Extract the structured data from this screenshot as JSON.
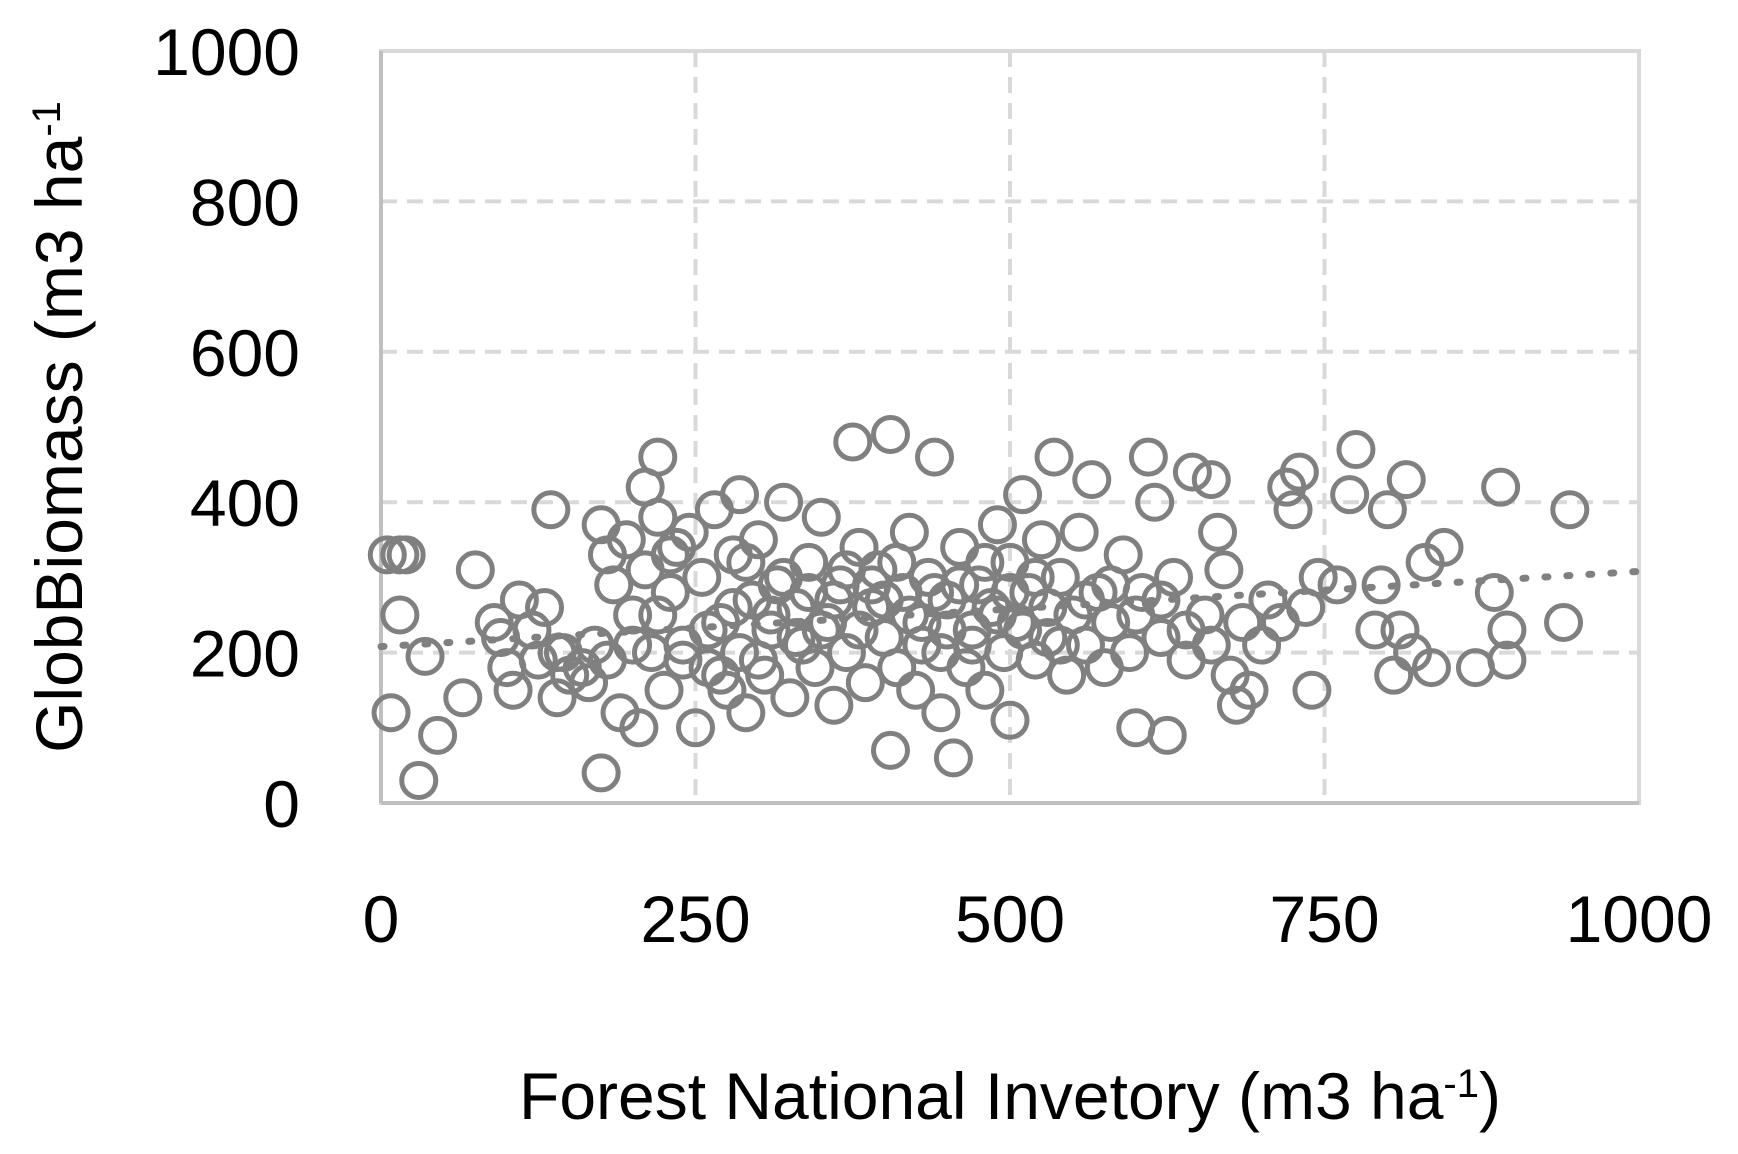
{
  "chart_data": {
    "type": "scatter",
    "xlabel": "Forest National Invetory (m3 ha",
    "xlabel_sup": "-1",
    "xlabel_end": ")",
    "ylabel": "GlobBiomass (m3 ha",
    "ylabel_sup": "-1",
    "ylabel_end": "",
    "xlim": [
      0,
      1000
    ],
    "ylim": [
      0,
      1000
    ],
    "x_ticks": [
      "0",
      "250",
      "500",
      "750",
      "1000"
    ],
    "y_ticks": [
      "0",
      "200",
      "400",
      "600",
      "800",
      "1000"
    ],
    "grid": true,
    "marker": "open-circle",
    "trendline": {
      "style": "dotted",
      "x": [
        0,
        1000
      ],
      "y": [
        208,
        308
      ]
    },
    "series": [
      {
        "points": [
          [
            5,
            330
          ],
          [
            15,
            330
          ],
          [
            20,
            330
          ],
          [
            8,
            120
          ],
          [
            15,
            250
          ],
          [
            35,
            195
          ],
          [
            30,
            30
          ],
          [
            45,
            90
          ],
          [
            65,
            140
          ],
          [
            75,
            310
          ],
          [
            90,
            240
          ],
          [
            95,
            220
          ],
          [
            100,
            180
          ],
          [
            105,
            150
          ],
          [
            110,
            270
          ],
          [
            120,
            230
          ],
          [
            125,
            190
          ],
          [
            130,
            260
          ],
          [
            135,
            390
          ],
          [
            140,
            140
          ],
          [
            145,
            200
          ],
          [
            150,
            170
          ],
          [
            165,
            160
          ],
          [
            170,
            210
          ],
          [
            175,
            40
          ],
          [
            175,
            370
          ],
          [
            180,
            330
          ],
          [
            185,
            290
          ],
          [
            190,
            120
          ],
          [
            195,
            350
          ],
          [
            200,
            250
          ],
          [
            205,
            100
          ],
          [
            210,
            310
          ],
          [
            210,
            420
          ],
          [
            215,
            200
          ],
          [
            220,
            380
          ],
          [
            220,
            460
          ],
          [
            225,
            150
          ],
          [
            230,
            280
          ],
          [
            235,
            340
          ],
          [
            240,
            210
          ],
          [
            245,
            360
          ],
          [
            250,
            100
          ],
          [
            255,
            300
          ],
          [
            260,
            180
          ],
          [
            265,
            390
          ],
          [
            270,
            240
          ],
          [
            275,
            150
          ],
          [
            280,
            330
          ],
          [
            285,
            200
          ],
          [
            285,
            410
          ],
          [
            290,
            120
          ],
          [
            295,
            270
          ],
          [
            300,
            350
          ],
          [
            305,
            170
          ],
          [
            310,
            230
          ],
          [
            315,
            290
          ],
          [
            320,
            400
          ],
          [
            325,
            140
          ],
          [
            330,
            260
          ],
          [
            335,
            210
          ],
          [
            340,
            320
          ],
          [
            345,
            180
          ],
          [
            350,
            380
          ],
          [
            355,
            240
          ],
          [
            360,
            130
          ],
          [
            365,
            290
          ],
          [
            370,
            200
          ],
          [
            375,
            480
          ],
          [
            380,
            340
          ],
          [
            385,
            160
          ],
          [
            390,
            260
          ],
          [
            395,
            310
          ],
          [
            400,
            220
          ],
          [
            405,
            490
          ],
          [
            405,
            70
          ],
          [
            410,
            180
          ],
          [
            415,
            280
          ],
          [
            420,
            360
          ],
          [
            425,
            150
          ],
          [
            430,
            240
          ],
          [
            435,
            300
          ],
          [
            440,
            460
          ],
          [
            445,
            200
          ],
          [
            445,
            120
          ],
          [
            450,
            270
          ],
          [
            455,
            60
          ],
          [
            460,
            340
          ],
          [
            465,
            180
          ],
          [
            470,
            230
          ],
          [
            475,
            290
          ],
          [
            480,
            150
          ],
          [
            485,
            260
          ],
          [
            490,
            370
          ],
          [
            495,
            200
          ],
          [
            500,
            320
          ],
          [
            500,
            110
          ],
          [
            505,
            240
          ],
          [
            510,
            410
          ],
          [
            515,
            280
          ],
          [
            520,
            190
          ],
          [
            525,
            350
          ],
          [
            530,
            220
          ],
          [
            535,
            460
          ],
          [
            540,
            300
          ],
          [
            545,
            170
          ],
          [
            550,
            250
          ],
          [
            555,
            360
          ],
          [
            560,
            210
          ],
          [
            565,
            430
          ],
          [
            570,
            280
          ],
          [
            575,
            180
          ],
          [
            580,
            240
          ],
          [
            590,
            330
          ],
          [
            595,
            200
          ],
          [
            600,
            100
          ],
          [
            605,
            280
          ],
          [
            610,
            460
          ],
          [
            615,
            400
          ],
          [
            620,
            220
          ],
          [
            625,
            90
          ],
          [
            630,
            300
          ],
          [
            640,
            190
          ],
          [
            645,
            440
          ],
          [
            655,
            250
          ],
          [
            660,
            430
          ],
          [
            665,
            360
          ],
          [
            670,
            310
          ],
          [
            675,
            170
          ],
          [
            680,
            130
          ],
          [
            685,
            240
          ],
          [
            690,
            150
          ],
          [
            700,
            210
          ],
          [
            705,
            270
          ],
          [
            715,
            240
          ],
          [
            720,
            420
          ],
          [
            725,
            390
          ],
          [
            730,
            440
          ],
          [
            735,
            260
          ],
          [
            740,
            150
          ],
          [
            745,
            300
          ],
          [
            760,
            290
          ],
          [
            770,
            410
          ],
          [
            775,
            470
          ],
          [
            790,
            230
          ],
          [
            795,
            290
          ],
          [
            800,
            390
          ],
          [
            805,
            170
          ],
          [
            810,
            230
          ],
          [
            815,
            430
          ],
          [
            820,
            200
          ],
          [
            830,
            320
          ],
          [
            835,
            180
          ],
          [
            845,
            340
          ],
          [
            870,
            180
          ],
          [
            885,
            280
          ],
          [
            890,
            420
          ],
          [
            895,
            230
          ],
          [
            895,
            190
          ],
          [
            940,
            240
          ],
          [
            945,
            390
          ],
          [
            230,
            330
          ],
          [
            270,
            170
          ],
          [
            290,
            320
          ],
          [
            310,
            250
          ],
          [
            330,
            220
          ],
          [
            340,
            280
          ],
          [
            350,
            230
          ],
          [
            360,
            270
          ],
          [
            370,
            310
          ],
          [
            380,
            230
          ],
          [
            390,
            290
          ],
          [
            400,
            270
          ],
          [
            410,
            320
          ],
          [
            420,
            250
          ],
          [
            430,
            210
          ],
          [
            440,
            280
          ],
          [
            450,
            230
          ],
          [
            460,
            290
          ],
          [
            470,
            210
          ],
          [
            480,
            320
          ],
          [
            490,
            250
          ],
          [
            500,
            280
          ],
          [
            510,
            230
          ],
          [
            520,
            300
          ],
          [
            530,
            260
          ],
          [
            540,
            210
          ],
          [
            560,
            270
          ],
          [
            580,
            290
          ],
          [
            600,
            250
          ],
          [
            620,
            270
          ],
          [
            640,
            230
          ],
          [
            660,
            210
          ],
          [
            300,
            190
          ],
          [
            320,
            300
          ],
          [
            280,
            260
          ],
          [
            260,
            230
          ],
          [
            240,
            190
          ],
          [
            220,
            250
          ],
          [
            200,
            210
          ],
          [
            180,
            190
          ],
          [
            160,
            180
          ],
          [
            140,
            200
          ]
        ]
      }
    ]
  }
}
